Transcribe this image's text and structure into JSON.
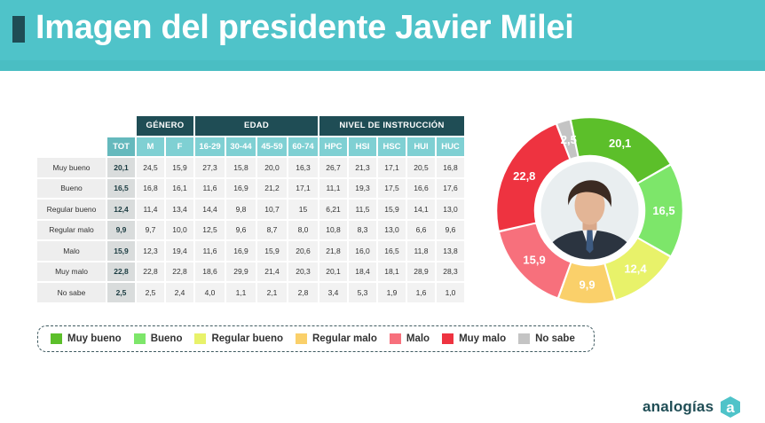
{
  "title": "Imagen del presidente Javier Milei",
  "table": {
    "groups": [
      {
        "label": "GÉNERO",
        "span": 2
      },
      {
        "label": "EDAD",
        "span": 4
      },
      {
        "label": "NIVEL DE INSTRUCCIÓN",
        "span": 5
      }
    ],
    "columns": [
      "TOT",
      "M",
      "F",
      "16-29",
      "30-44",
      "45-59",
      "60-74",
      "HPC",
      "HSI",
      "HSC",
      "HUI",
      "HUC"
    ],
    "rows": [
      {
        "label": "Muy bueno",
        "values": [
          "20,1",
          "24,5",
          "15,9",
          "27,3",
          "15,8",
          "20,0",
          "16,3",
          "26,7",
          "21,3",
          "17,1",
          "20,5",
          "16,8"
        ]
      },
      {
        "label": "Bueno",
        "values": [
          "16,5",
          "16,8",
          "16,1",
          "11,6",
          "16,9",
          "21,2",
          "17,1",
          "11,1",
          "19,3",
          "17,5",
          "16,6",
          "17,6"
        ]
      },
      {
        "label": "Regular bueno",
        "values": [
          "12,4",
          "11,4",
          "13,4",
          "14,4",
          "9,8",
          "10,7",
          "15",
          "6,21",
          "11,5",
          "15,9",
          "14,1",
          "13,0"
        ]
      },
      {
        "label": "Regular malo",
        "values": [
          "9,9",
          "9,7",
          "10,0",
          "12,5",
          "9,6",
          "8,7",
          "8,0",
          "10,8",
          "8,3",
          "13,0",
          "6,6",
          "9,6"
        ]
      },
      {
        "label": "Malo",
        "values": [
          "15,9",
          "12,3",
          "19,4",
          "11,6",
          "16,9",
          "15,9",
          "20,6",
          "21,8",
          "16,0",
          "16,5",
          "11,8",
          "13,8"
        ]
      },
      {
        "label": "Muy malo",
        "values": [
          "22,8",
          "22,8",
          "22,8",
          "18,6",
          "29,9",
          "21,4",
          "20,3",
          "20,1",
          "18,4",
          "18,1",
          "28,9",
          "28,3"
        ]
      },
      {
        "label": "No sabe",
        "values": [
          "2,5",
          "2,5",
          "2,4",
          "4,0",
          "1,1",
          "2,1",
          "2,8",
          "3,4",
          "5,3",
          "1,9",
          "1,6",
          "1,0"
        ]
      }
    ]
  },
  "chart_data": {
    "type": "pie",
    "title": "",
    "donut": true,
    "start_angle_deg": -12,
    "center_image": "portrait",
    "slices": [
      {
        "label": "Muy bueno",
        "value": 20.1,
        "display": "20,1",
        "color": "#5cbf2a"
      },
      {
        "label": "Bueno",
        "value": 16.5,
        "display": "16,5",
        "color": "#7de66a"
      },
      {
        "label": "Regular bueno",
        "value": 12.4,
        "display": "12,4",
        "color": "#e8f26a"
      },
      {
        "label": "Regular malo",
        "value": 9.9,
        "display": "9,9",
        "color": "#fad06a"
      },
      {
        "label": "Malo",
        "value": 15.9,
        "display": "15,9",
        "color": "#f7707c"
      },
      {
        "label": "Muy malo",
        "value": 22.8,
        "display": "22,8",
        "color": "#ee3340"
      },
      {
        "label": "No sabe",
        "value": 2.5,
        "display": "2,5",
        "color": "#c4c4c4"
      }
    ],
    "legend_position": "bottom"
  },
  "brand": {
    "name": "analogías",
    "logo_letter": "a",
    "logo_color": "#4fc3c9"
  }
}
